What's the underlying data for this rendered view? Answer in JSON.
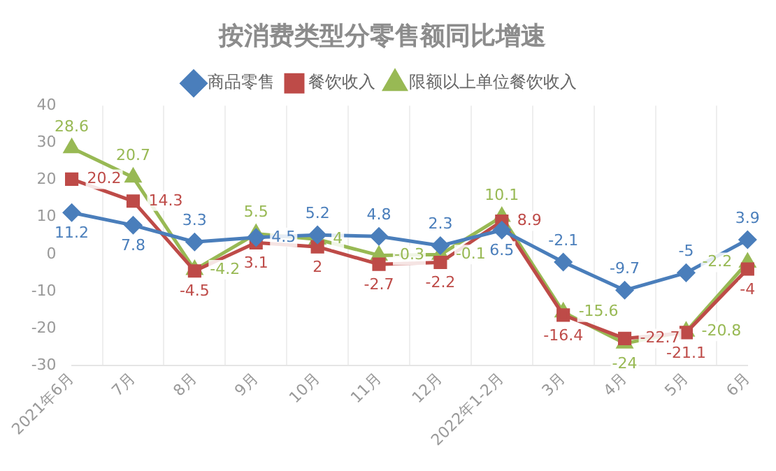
{
  "chart_data": {
    "type": "line",
    "title": "按消费类型分零售额同比增速",
    "categories": [
      "2021年6月",
      "7月",
      "8月",
      "9月",
      "10月",
      "11月",
      "12月",
      "2022年1-2月",
      "3月",
      "4月",
      "5月",
      "6月"
    ],
    "series": [
      {
        "name": "商品零售",
        "color": "#4a7ebb",
        "marker": "diamond",
        "values": [
          11.2,
          7.8,
          3.3,
          4.5,
          5.2,
          4.8,
          2.3,
          6.5,
          -2.1,
          -9.7,
          -5,
          3.9
        ]
      },
      {
        "name": "餐饮收入",
        "color": "#be4b48",
        "marker": "square",
        "values": [
          20.2,
          14.3,
          -4.5,
          3.1,
          2,
          -2.7,
          -2.2,
          8.9,
          -16.4,
          -22.7,
          -21.1,
          -4
        ]
      },
      {
        "name": "限额以上单位餐饮收入",
        "color": "#98b954",
        "marker": "triangle",
        "values": [
          28.6,
          20.7,
          -4.2,
          5.5,
          4,
          -0.3,
          -0.1,
          10.1,
          -15.6,
          -24,
          -20.8,
          -2.2
        ]
      }
    ],
    "ylim": [
      -30,
      40
    ],
    "yticks": [
      -30,
      -20,
      -10,
      0,
      10,
      20,
      30,
      40
    ],
    "grid": "x",
    "legend": "top",
    "data_labels": true,
    "line_style": "solid"
  }
}
